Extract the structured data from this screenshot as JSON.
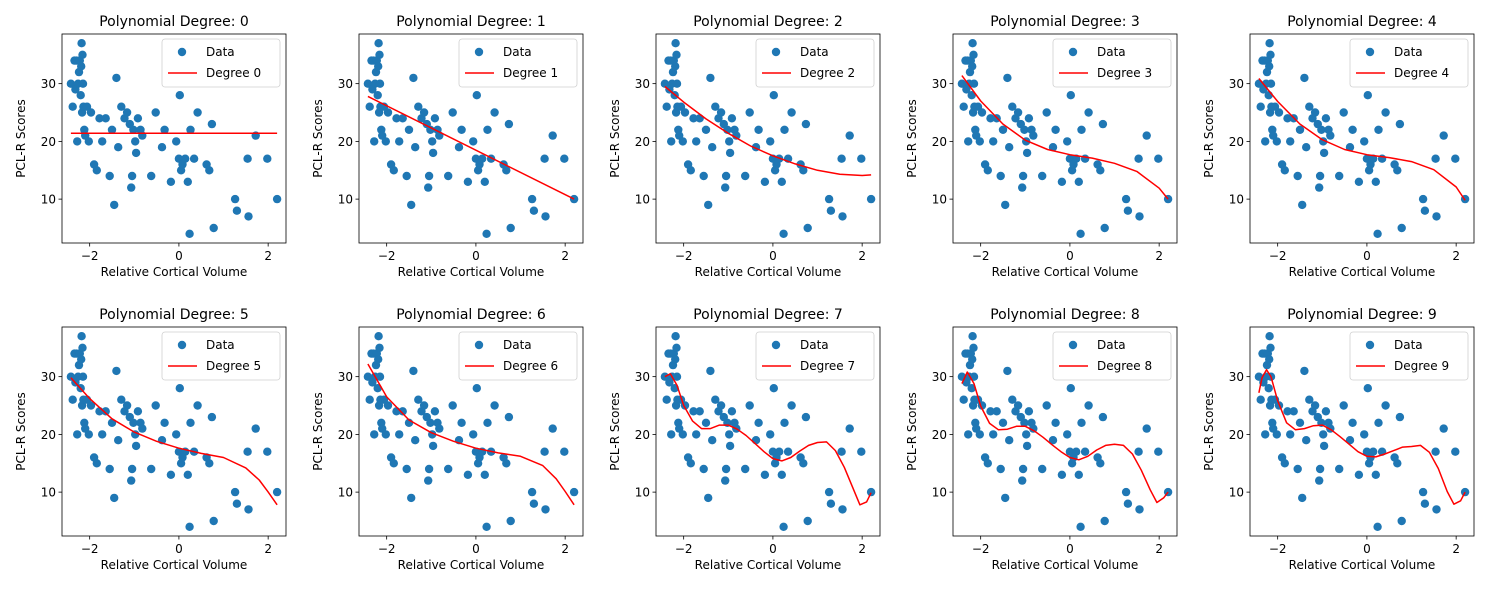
{
  "data_points": {
    "x": [
      -2.42,
      -2.38,
      -2.34,
      -2.32,
      -2.3,
      -2.28,
      -2.26,
      -2.24,
      -2.22,
      -2.2,
      -2.19,
      -2.18,
      -2.17,
      -2.16,
      -2.15,
      -2.14,
      -2.12,
      -2.1,
      -2.06,
      -2.02,
      -1.97,
      -1.9,
      -1.84,
      -1.78,
      -1.72,
      -1.64,
      -1.55,
      -1.5,
      -1.45,
      -1.4,
      -1.36,
      -1.29,
      -1.22,
      -1.16,
      -1.1,
      -1.07,
      -1.05,
      -1.02,
      -0.98,
      -0.96,
      -0.92,
      -0.86,
      -0.82,
      -0.62,
      -0.52,
      -0.38,
      -0.32,
      -0.18,
      -0.06,
      0.0,
      0.02,
      0.05,
      0.08,
      0.14,
      0.2,
      0.24,
      0.26,
      0.34,
      0.42,
      0.62,
      0.68,
      0.74,
      0.78,
      1.26,
      1.3,
      1.54,
      1.56,
      1.72,
      1.98,
      2.2
    ],
    "y": [
      30,
      26,
      34,
      29,
      34,
      20,
      30,
      32,
      34,
      28,
      33,
      37,
      25,
      35,
      30,
      26,
      22,
      21,
      26,
      20,
      25,
      16,
      15,
      24,
      20,
      24,
      14,
      22,
      9,
      31,
      19,
      26,
      24,
      25,
      23,
      12,
      14,
      22,
      20,
      18,
      24,
      22,
      21,
      14,
      25,
      19,
      22,
      13,
      20,
      17,
      28,
      15,
      16,
      17,
      13,
      4,
      22,
      17,
      25,
      16,
      15,
      23,
      5,
      10,
      8,
      17,
      7,
      21,
      17,
      10
    ]
  },
  "chart_data": [
    {
      "type": "scatter",
      "title": "Polynomial Degree: 0",
      "xlabel": "Relative Cortical Volume",
      "ylabel": "PCL-R Scores",
      "xlim": [
        -2.62,
        2.4
      ],
      "ylim": [
        2.4,
        38.6
      ],
      "xticks": [
        -2,
        0,
        2
      ],
      "yticks": [
        10,
        20,
        30
      ],
      "legend_position": "top-right",
      "series": [
        {
          "name": "Data",
          "kind": "scatter",
          "color": "#1f77b4"
        },
        {
          "name": "Degree 0",
          "kind": "line",
          "color": "#ff0000",
          "x": [
            -2.42,
            2.2
          ],
          "y": [
            21.4,
            21.4
          ]
        }
      ]
    },
    {
      "type": "scatter",
      "title": "Polynomial Degree: 1",
      "xlabel": "Relative Cortical Volume",
      "ylabel": "PCL-R Scores",
      "xlim": [
        -2.62,
        2.4
      ],
      "ylim": [
        2.4,
        38.6
      ],
      "xticks": [
        -2,
        0,
        2
      ],
      "yticks": [
        10,
        20,
        30
      ],
      "legend_position": "top-right",
      "series": [
        {
          "name": "Data",
          "kind": "scatter",
          "color": "#1f77b4"
        },
        {
          "name": "Degree 1",
          "kind": "line",
          "color": "#ff0000",
          "x": [
            -2.42,
            2.2
          ],
          "y": [
            27.8,
            10.0
          ]
        }
      ]
    },
    {
      "type": "scatter",
      "title": "Polynomial Degree: 2",
      "xlabel": "Relative Cortical Volume",
      "ylabel": "PCL-R Scores",
      "xlim": [
        -2.62,
        2.4
      ],
      "ylim": [
        2.4,
        38.6
      ],
      "xticks": [
        -2,
        0,
        2
      ],
      "yticks": [
        10,
        20,
        30
      ],
      "legend_position": "top-right",
      "series": [
        {
          "name": "Data",
          "kind": "scatter",
          "color": "#1f77b4"
        },
        {
          "name": "Degree 2",
          "kind": "line",
          "color": "#ff0000",
          "x": [
            -2.42,
            -2.0,
            -1.5,
            -1.0,
            -0.5,
            0.0,
            0.5,
            1.0,
            1.5,
            2.0,
            2.2
          ],
          "y": [
            29.5,
            26.8,
            23.9,
            21.4,
            19.2,
            17.5,
            16.1,
            15.0,
            14.3,
            14.1,
            14.2
          ]
        }
      ]
    },
    {
      "type": "scatter",
      "title": "Polynomial Degree: 3",
      "xlabel": "Relative Cortical Volume",
      "ylabel": "PCL-R Scores",
      "xlim": [
        -2.62,
        2.4
      ],
      "ylim": [
        2.4,
        38.6
      ],
      "xticks": [
        -2,
        0,
        2
      ],
      "yticks": [
        10,
        20,
        30
      ],
      "legend_position": "top-right",
      "series": [
        {
          "name": "Data",
          "kind": "scatter",
          "color": "#1f77b4"
        },
        {
          "name": "Degree 3",
          "kind": "line",
          "color": "#ff0000",
          "x": [
            -2.42,
            -2.0,
            -1.5,
            -1.0,
            -0.5,
            0.0,
            0.5,
            1.0,
            1.5,
            2.0,
            2.2
          ],
          "y": [
            31.4,
            27.0,
            23.0,
            20.2,
            18.6,
            17.7,
            17.1,
            16.2,
            14.8,
            11.9,
            10.0
          ]
        }
      ]
    },
    {
      "type": "scatter",
      "title": "Polynomial Degree: 4",
      "xlabel": "Relative Cortical Volume",
      "ylabel": "PCL-R Scores",
      "xlim": [
        -2.62,
        2.4
      ],
      "ylim": [
        2.4,
        38.6
      ],
      "xticks": [
        -2,
        0,
        2
      ],
      "yticks": [
        10,
        20,
        30
      ],
      "legend_position": "top-right",
      "series": [
        {
          "name": "Data",
          "kind": "scatter",
          "color": "#1f77b4"
        },
        {
          "name": "Degree 4",
          "kind": "line",
          "color": "#ff0000",
          "x": [
            -2.42,
            -2.0,
            -1.5,
            -1.0,
            -0.5,
            0.0,
            0.5,
            1.0,
            1.5,
            2.0,
            2.2
          ],
          "y": [
            30.9,
            26.9,
            23.0,
            20.3,
            18.6,
            17.7,
            17.2,
            16.5,
            15.1,
            12.1,
            9.8
          ]
        }
      ]
    },
    {
      "type": "scatter",
      "title": "Polynomial Degree: 5",
      "xlabel": "Relative Cortical Volume",
      "ylabel": "PCL-R Scores",
      "xlim": [
        -2.62,
        2.4
      ],
      "ylim": [
        2.4,
        38.6
      ],
      "xticks": [
        -2,
        0,
        2
      ],
      "yticks": [
        10,
        20,
        30
      ],
      "legend_position": "top-right",
      "series": [
        {
          "name": "Data",
          "kind": "scatter",
          "color": "#1f77b4"
        },
        {
          "name": "Degree 5",
          "kind": "line",
          "color": "#ff0000",
          "x": [
            -2.42,
            -2.0,
            -1.5,
            -1.0,
            -0.5,
            0.0,
            0.5,
            1.0,
            1.5,
            1.8,
            2.0,
            2.2
          ],
          "y": [
            29.8,
            26.2,
            22.7,
            20.4,
            18.8,
            17.6,
            16.7,
            16.0,
            14.2,
            12.1,
            10.0,
            7.8
          ]
        }
      ]
    },
    {
      "type": "scatter",
      "title": "Polynomial Degree: 6",
      "xlabel": "Relative Cortical Volume",
      "ylabel": "PCL-R Scores",
      "xlim": [
        -2.62,
        2.4
      ],
      "ylim": [
        2.4,
        38.6
      ],
      "xticks": [
        -2,
        0,
        2
      ],
      "yticks": [
        10,
        20,
        30
      ],
      "legend_position": "top-right",
      "series": [
        {
          "name": "Data",
          "kind": "scatter",
          "color": "#1f77b4"
        },
        {
          "name": "Degree 6",
          "kind": "line",
          "color": "#ff0000",
          "x": [
            -2.42,
            -2.0,
            -1.5,
            -1.0,
            -0.5,
            0.0,
            0.5,
            1.0,
            1.5,
            1.8,
            2.0,
            2.2
          ],
          "y": [
            32.2,
            26.5,
            22.5,
            20.3,
            18.8,
            17.6,
            16.8,
            16.2,
            14.6,
            12.3,
            10.1,
            7.8
          ]
        }
      ]
    },
    {
      "type": "scatter",
      "title": "Polynomial Degree: 7",
      "xlabel": "Relative Cortical Volume",
      "ylabel": "PCL-R Scores",
      "xlim": [
        -2.62,
        2.4
      ],
      "ylim": [
        2.4,
        38.6
      ],
      "xticks": [
        -2,
        0,
        2
      ],
      "yticks": [
        10,
        20,
        30
      ],
      "legend_position": "top-right",
      "series": [
        {
          "name": "Data",
          "kind": "scatter",
          "color": "#1f77b4"
        },
        {
          "name": "Degree 7",
          "kind": "line",
          "color": "#ff0000",
          "x": [
            -2.42,
            -2.3,
            -2.15,
            -2.0,
            -1.8,
            -1.6,
            -1.4,
            -1.2,
            -1.0,
            -0.8,
            -0.6,
            -0.4,
            -0.2,
            0.0,
            0.2,
            0.4,
            0.6,
            0.8,
            1.0,
            1.2,
            1.4,
            1.6,
            1.8,
            1.95,
            2.1,
            2.2
          ],
          "y": [
            30.0,
            30.5,
            28.5,
            25.0,
            22.3,
            21.0,
            21.0,
            21.6,
            21.6,
            20.9,
            19.8,
            18.4,
            17.0,
            15.8,
            15.4,
            16.0,
            17.1,
            18.1,
            18.6,
            18.7,
            17.2,
            14.3,
            10.6,
            7.8,
            8.3,
            9.9
          ]
        }
      ]
    },
    {
      "type": "scatter",
      "title": "Polynomial Degree: 8",
      "xlabel": "Relative Cortical Volume",
      "ylabel": "PCL-R Scores",
      "xlim": [
        -2.62,
        2.4
      ],
      "ylim": [
        2.4,
        38.6
      ],
      "xticks": [
        -2,
        0,
        2
      ],
      "yticks": [
        10,
        20,
        30
      ],
      "legend_position": "top-right",
      "series": [
        {
          "name": "Data",
          "kind": "scatter",
          "color": "#1f77b4"
        },
        {
          "name": "Degree 8",
          "kind": "line",
          "color": "#ff0000",
          "x": [
            -2.42,
            -2.3,
            -2.15,
            -2.0,
            -1.8,
            -1.6,
            -1.4,
            -1.2,
            -1.0,
            -0.8,
            -0.6,
            -0.4,
            -0.2,
            0.0,
            0.2,
            0.4,
            0.6,
            0.8,
            1.0,
            1.2,
            1.4,
            1.6,
            1.8,
            1.95,
            2.1,
            2.2
          ],
          "y": [
            28.8,
            30.8,
            28.8,
            24.9,
            21.9,
            20.8,
            20.9,
            21.4,
            21.4,
            20.6,
            19.5,
            18.2,
            17.0,
            16.0,
            15.6,
            16.2,
            17.3,
            18.1,
            18.3,
            18.1,
            16.6,
            13.8,
            10.4,
            8.2,
            9.0,
            10.0
          ]
        }
      ]
    },
    {
      "type": "scatter",
      "title": "Polynomial Degree: 9",
      "xlabel": "Relative Cortical Volume",
      "ylabel": "PCL-R Scores",
      "xlim": [
        -2.62,
        2.4
      ],
      "ylim": [
        2.4,
        38.6
      ],
      "xticks": [
        -2,
        0,
        2
      ],
      "yticks": [
        10,
        20,
        30
      ],
      "legend_position": "top-right",
      "series": [
        {
          "name": "Data",
          "kind": "scatter",
          "color": "#1f77b4"
        },
        {
          "name": "Degree 9",
          "kind": "line",
          "color": "#ff0000",
          "x": [
            -2.42,
            -2.35,
            -2.25,
            -2.15,
            -2.0,
            -1.8,
            -1.6,
            -1.4,
            -1.2,
            -1.0,
            -0.8,
            -0.6,
            -0.4,
            -0.2,
            0.0,
            0.2,
            0.4,
            0.6,
            0.8,
            1.0,
            1.2,
            1.4,
            1.6,
            1.8,
            1.95,
            2.1,
            2.2
          ],
          "y": [
            27.2,
            29.8,
            31.2,
            30.0,
            25.8,
            22.0,
            20.8,
            21.0,
            21.5,
            21.6,
            20.8,
            19.6,
            18.3,
            17.0,
            16.2,
            16.1,
            16.6,
            17.2,
            17.8,
            17.9,
            18.1,
            16.9,
            14.1,
            10.1,
            7.9,
            8.5,
            10.0
          ]
        }
      ]
    }
  ]
}
